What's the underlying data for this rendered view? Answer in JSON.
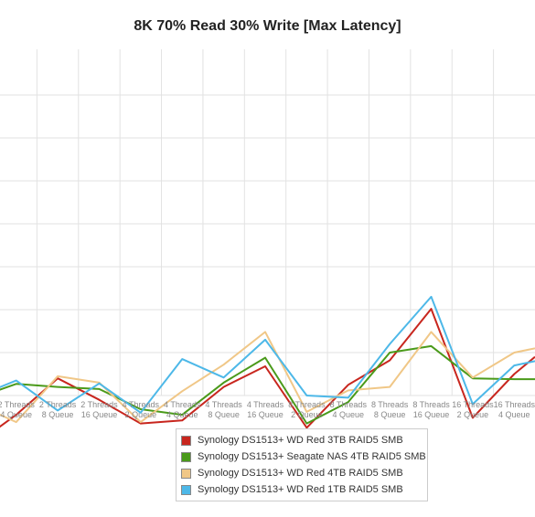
{
  "chart_data": {
    "type": "line",
    "title": "8K 70% Read 30% Write [Max Latency]",
    "xlabel": "",
    "ylabel": "",
    "grid": true,
    "legend_position": "bottom",
    "categories": [
      [
        "2 Threads",
        "4 Queue"
      ],
      [
        "2 Threads",
        "8 Queue"
      ],
      [
        "2 Threads",
        "16 Queue"
      ],
      [
        "4 Threads",
        "2 Queue"
      ],
      [
        "4 Threads",
        "4 Queue"
      ],
      [
        "4 Threads",
        "8 Queue"
      ],
      [
        "4 Threads",
        "16 Queue"
      ],
      [
        "8 Threads",
        "2 Queue"
      ],
      [
        "8 Threads",
        "4 Queue"
      ],
      [
        "8 Threads",
        "8 Queue"
      ],
      [
        "8 Threads",
        "16 Queue"
      ],
      [
        "16 Threads",
        "2 Queue"
      ],
      [
        "16 Threads",
        "4 Queue"
      ]
    ],
    "x": [
      0.5,
      1.5,
      2.5,
      3.5,
      4.5,
      5.5,
      6.5,
      7.5,
      8.5,
      9.5,
      10.5,
      11.5,
      12.5
    ],
    "ylim": [
      0,
      9
    ],
    "xlim": [
      0,
      13
    ],
    "series": [
      {
        "name": "Synology DS1513+ WD Red 3TB RAID5 SMB",
        "color": "#c8261e",
        "x": [
          0,
          0.5,
          1.5,
          2.5,
          3.5,
          4.5,
          5.5,
          6.5,
          7.5,
          8.5,
          9.5,
          10.5,
          11.5,
          12.5,
          13
        ],
        "values": [
          0.2,
          0.55,
          1.4,
          0.9,
          0.35,
          0.42,
          1.2,
          1.68,
          0.25,
          1.25,
          1.82,
          3.02,
          0.48,
          1.5,
          1.9
        ]
      },
      {
        "name": "Synology DS1513+ Seagate NAS 4TB RAID5 SMB",
        "color": "#4a9a1a",
        "x": [
          0,
          0.5,
          1.5,
          2.5,
          3.5,
          4.5,
          5.5,
          6.5,
          7.5,
          8.5,
          9.5,
          10.5,
          11.5,
          12.5,
          13
        ],
        "values": [
          1.1,
          1.27,
          1.2,
          1.15,
          0.68,
          0.55,
          1.3,
          1.88,
          0.35,
          0.85,
          2.0,
          2.15,
          1.4,
          1.38,
          1.38
        ]
      },
      {
        "name": "Synology DS1513+ WD Red 4TB RAID5 SMB",
        "color": "#f0c787",
        "x": [
          0,
          0.5,
          1.5,
          2.5,
          3.5,
          4.5,
          5.5,
          6.5,
          7.5,
          8.5,
          9.5,
          10.5,
          11.5,
          12.5,
          13
        ],
        "values": [
          0.6,
          0.38,
          1.45,
          1.3,
          0.38,
          1.1,
          1.72,
          2.48,
          0.62,
          1.12,
          1.2,
          2.48,
          1.42,
          2.0,
          2.1
        ]
      },
      {
        "name": "Synology DS1513+ WD Red 1TB RAID5 SMB",
        "color": "#4db8e8",
        "x": [
          0,
          0.5,
          1.5,
          2.5,
          3.5,
          4.5,
          5.5,
          6.5,
          7.5,
          8.5,
          9.5,
          10.5,
          11.5,
          12.5,
          13
        ],
        "values": [
          1.15,
          1.35,
          0.65,
          1.28,
          0.6,
          1.85,
          1.42,
          2.3,
          1.0,
          0.95,
          2.2,
          3.3,
          0.8,
          1.7,
          1.8
        ]
      }
    ]
  }
}
